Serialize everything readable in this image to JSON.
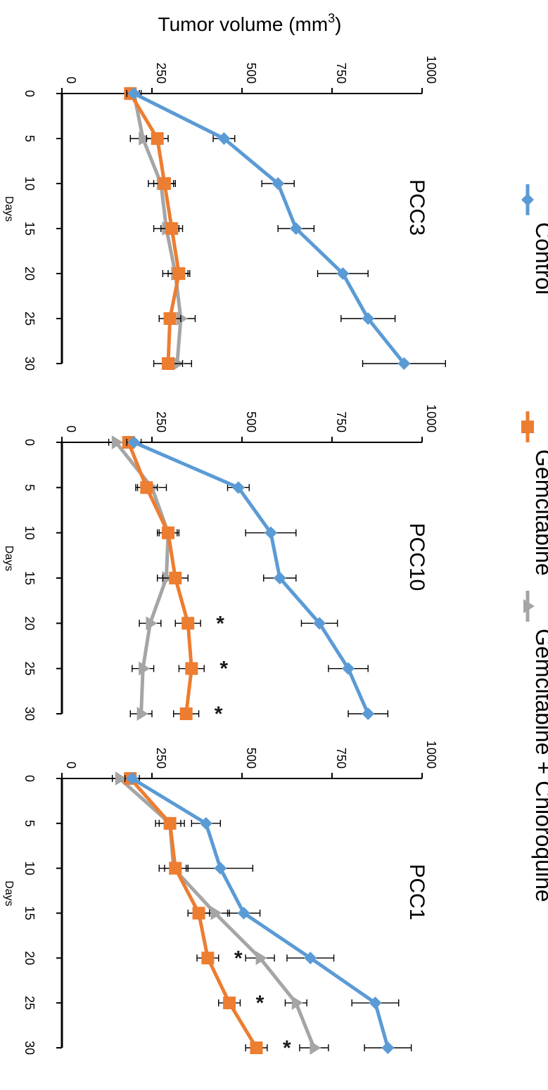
{
  "figure": {
    "ylabel": "Tumor volume (mm3)",
    "ylabel_base": "Tumor volume (mm",
    "ylabel_sup": "3",
    "ylabel_close": ")",
    "colors": {
      "Control": "#5b9bd5",
      "Gemcitabine": "#ed7d31",
      "Gemcitabine + Chloroquine": "#a5a5a5"
    },
    "legend": [
      "Control",
      "Gemcitabine",
      "Gemcitabine + Chloroquine"
    ],
    "significance_marker": "*"
  },
  "chart_data": [
    {
      "type": "line",
      "title": "PCC3",
      "xlabel": "Days",
      "ylabel": "Tumor volume (mm3)",
      "x": [
        0,
        5,
        10,
        15,
        20,
        25,
        30
      ],
      "xlim": [
        0,
        30
      ],
      "ylim": [
        0,
        1000
      ],
      "yticks": [
        0,
        250,
        500,
        750,
        1000
      ],
      "series": [
        {
          "name": "Control",
          "values": [
            200,
            450,
            600,
            650,
            780,
            850,
            950
          ],
          "errors": [
            20,
            30,
            45,
            50,
            70,
            75,
            115
          ]
        },
        {
          "name": "Gemcitabine",
          "values": [
            190,
            265,
            285,
            305,
            325,
            300,
            295
          ],
          "errors": [
            15,
            30,
            30,
            30,
            30,
            30,
            40
          ]
        },
        {
          "name": "Gemcitabine + Chloroquine",
          "values": [
            200,
            225,
            275,
            290,
            315,
            330,
            320
          ],
          "errors": [
            15,
            35,
            35,
            35,
            35,
            40,
            40
          ]
        }
      ],
      "significance_days": []
    },
    {
      "type": "line",
      "title": "PCC10",
      "xlabel": "Days",
      "ylabel": "Tumor volume (mm3)",
      "x": [
        0,
        5,
        10,
        15,
        20,
        25,
        30
      ],
      "xlim": [
        0,
        30
      ],
      "ylim": [
        0,
        1000
      ],
      "yticks": [
        0,
        250,
        500,
        750,
        1000
      ],
      "series": [
        {
          "name": "Control",
          "values": [
            200,
            490,
            580,
            605,
            715,
            795,
            850
          ],
          "errors": [
            20,
            30,
            70,
            45,
            50,
            55,
            55
          ]
        },
        {
          "name": "Gemcitabine",
          "values": [
            185,
            235,
            295,
            315,
            350,
            360,
            345
          ],
          "errors": [
            15,
            30,
            25,
            35,
            35,
            35,
            35
          ]
        },
        {
          "name": "Gemcitabine + Chloroquine",
          "values": [
            150,
            250,
            295,
            290,
            245,
            225,
            220
          ],
          "errors": [
            20,
            40,
            30,
            25,
            30,
            30,
            30
          ]
        }
      ],
      "significance_days": [
        20,
        25,
        30
      ]
    },
    {
      "type": "line",
      "title": "PCC1",
      "xlabel": "Days",
      "ylabel": "Tumor volume (mm3)",
      "x": [
        0,
        5,
        10,
        15,
        20,
        25,
        30
      ],
      "xlim": [
        0,
        30
      ],
      "ylim": [
        0,
        1000
      ],
      "yticks": [
        0,
        250,
        500,
        750,
        1000
      ],
      "series": [
        {
          "name": "Control",
          "values": [
            195,
            400,
            440,
            505,
            690,
            870,
            905
          ],
          "errors": [
            20,
            40,
            90,
            45,
            65,
            65,
            65
          ]
        },
        {
          "name": "Gemcitabine",
          "values": [
            190,
            300,
            315,
            380,
            405,
            465,
            540
          ],
          "errors": [
            15,
            30,
            30,
            30,
            30,
            30,
            30
          ]
        },
        {
          "name": "Gemcitabine + Chloroquine",
          "values": [
            160,
            300,
            310,
            425,
            550,
            650,
            700
          ],
          "errors": [
            20,
            40,
            40,
            40,
            40,
            30,
            40
          ]
        }
      ],
      "significance_days": [
        20,
        25,
        30
      ]
    }
  ]
}
